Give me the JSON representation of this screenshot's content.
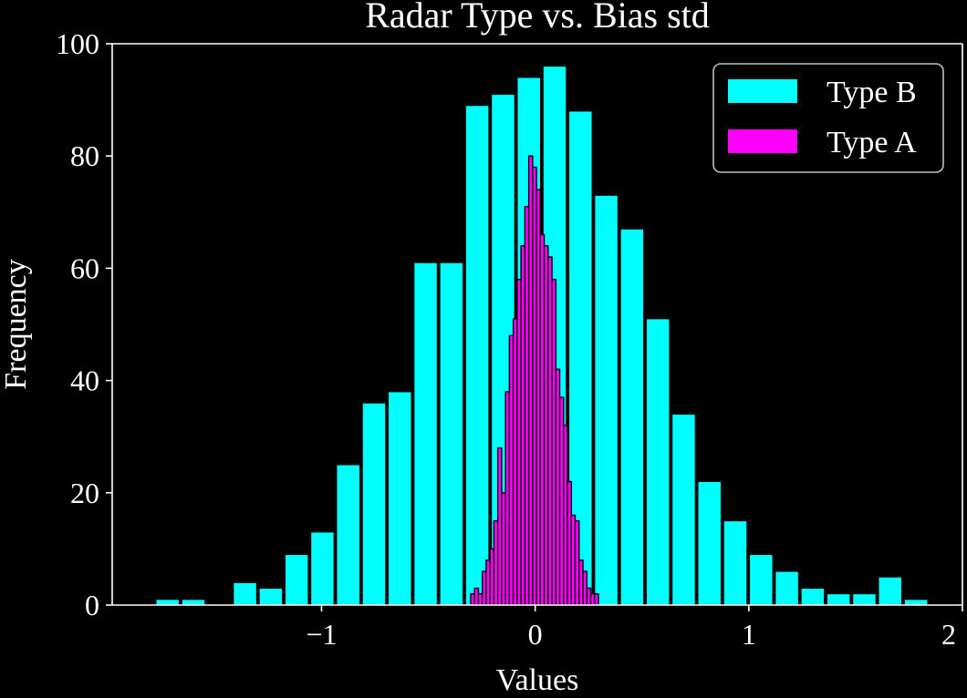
{
  "colors": {
    "background": "#000000",
    "foreground": "#ffffff",
    "type_b": "#00ffff",
    "type_a": "#ff00ff",
    "type_a_edge": "#000000",
    "legend_border": "#bfbfbf"
  },
  "chart_data": {
    "type": "bar",
    "subtype": "histogram",
    "title": "Radar Type vs. Bias std",
    "xlabel": "Values",
    "ylabel": "Frequency",
    "xlim": [
      -1.98,
      2.0
    ],
    "ylim": [
      0,
      100
    ],
    "xticks": [
      {
        "value": -1,
        "label": "−1"
      },
      {
        "value": 0,
        "label": "0"
      },
      {
        "value": 1,
        "label": "1"
      },
      {
        "value": 2,
        "label": "2"
      }
    ],
    "yticks": [
      {
        "value": 0,
        "label": "0"
      },
      {
        "value": 20,
        "label": "20"
      },
      {
        "value": 40,
        "label": "40"
      },
      {
        "value": 60,
        "label": "60"
      },
      {
        "value": 80,
        "label": "80"
      },
      {
        "value": 100,
        "label": "100"
      }
    ],
    "grid": false,
    "legend_position": "top-right",
    "legend": [
      {
        "label": "Type B",
        "color_key": "type_b"
      },
      {
        "label": "Type A",
        "color_key": "type_a"
      }
    ],
    "series": [
      {
        "name": "Type B",
        "color_key": "type_b",
        "edge_color_key": "background",
        "bin_start": -1.7812,
        "bin_width": 0.1208,
        "bar_fill": 0.9,
        "counts": [
          1,
          1,
          0,
          4,
          3,
          9,
          13,
          25,
          36,
          38,
          61,
          61,
          89,
          91,
          94,
          96,
          88,
          73,
          67,
          51,
          34,
          22,
          15,
          9,
          6,
          3,
          2,
          2,
          5,
          1
        ]
      },
      {
        "name": "Type A",
        "color_key": "type_a",
        "edge_color_key": "type_a_edge",
        "bin_start": -0.3019,
        "bin_width": 0.01812,
        "bar_fill": 1.0,
        "counts": [
          2,
          3,
          2,
          6,
          8,
          10,
          15,
          28,
          20,
          38,
          48,
          51,
          58,
          64,
          71,
          80,
          78,
          74,
          66,
          64,
          62,
          58,
          42,
          37,
          32,
          22,
          16,
          15,
          8,
          6,
          3,
          2,
          2
        ]
      }
    ]
  }
}
